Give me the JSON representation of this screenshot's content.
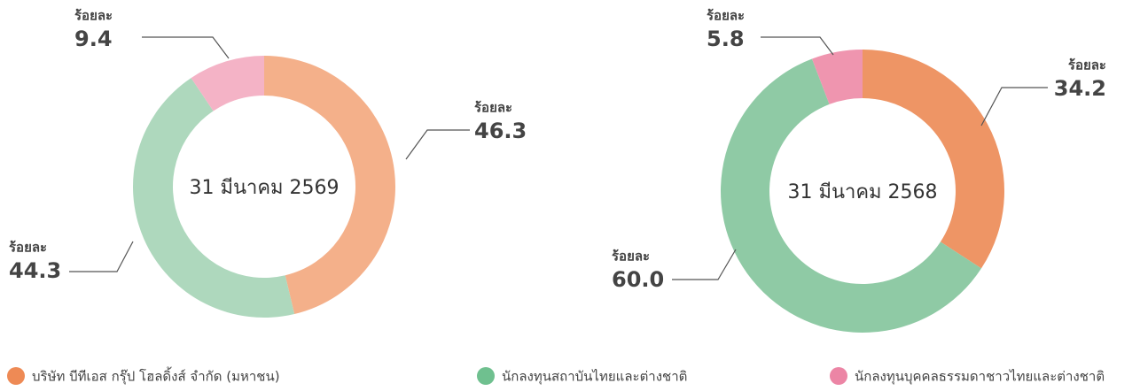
{
  "chart_data": [
    {
      "type": "pie",
      "center_label": "31 มีนาคม 2569",
      "unit_label": "ร้อยละ",
      "values": [
        46.3,
        44.3,
        9.4
      ],
      "colors": [
        "#f4b08a",
        "#aed8bd",
        "#f4b3c6"
      ]
    },
    {
      "type": "pie",
      "center_label": "31 มีนาคม 2568",
      "unit_label": "ร้อยละ",
      "values": [
        34.2,
        60.0,
        5.8
      ],
      "value_labels": [
        "34.2",
        "60.0",
        "5.8"
      ],
      "colors": [
        "#ee9565",
        "#8fcaa5",
        "#ef95af"
      ]
    }
  ],
  "legend": [
    {
      "name": "บริษัท บีทีเอส กรุ๊ป โฮลดิ้งส์ จำกัด (มหาชน)",
      "color": "#ee8a55"
    },
    {
      "name": "นักลงทุนสถาบันไทยและต่างชาติ",
      "color": "#6fc08f"
    },
    {
      "name": "นักลงทุนบุคคลธรรมดาชาวไทยและต่างชาติ",
      "color": "#ec85a5"
    }
  ]
}
